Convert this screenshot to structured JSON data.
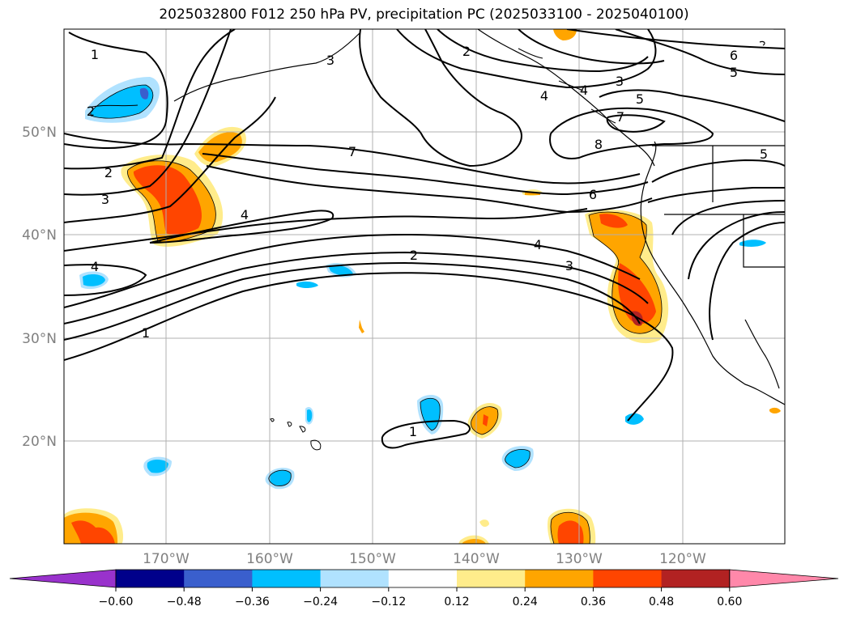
{
  "title": "2025032800 F012 250 hPa PV, precipitation PC (2025033100 - 2025040100)",
  "lat_labels": [
    "50°N",
    "40°N",
    "30°N",
    "20°N"
  ],
  "lon_labels": [
    "170°W",
    "160°W",
    "150°W",
    "140°W",
    "130°W",
    "120°W"
  ],
  "contour_labels": [
    "1",
    "2",
    "2",
    "3",
    "4",
    "4",
    "3",
    "7",
    "6",
    "5",
    "3",
    "4",
    "5",
    "7",
    "8",
    "6",
    "4",
    "2",
    "3",
    "1",
    "1",
    "5",
    "4",
    "2"
  ],
  "colorbar": {
    "ticks": [
      "−0.60",
      "−0.48",
      "−0.36",
      "−0.24",
      "−0.12",
      "0.12",
      "0.24",
      "0.36",
      "0.48",
      "0.60"
    ],
    "colors": [
      "#9932cc",
      "#00008b",
      "#3a5fcd",
      "#00bfff",
      "#b0e2ff",
      "#ffffff",
      "#ffec8b",
      "#ffa500",
      "#ff4500",
      "#b22222",
      "#ff88aa"
    ]
  },
  "colors": {
    "grid": "#b0b0b0",
    "contour": "#000000",
    "tick_text": "#808080"
  }
}
